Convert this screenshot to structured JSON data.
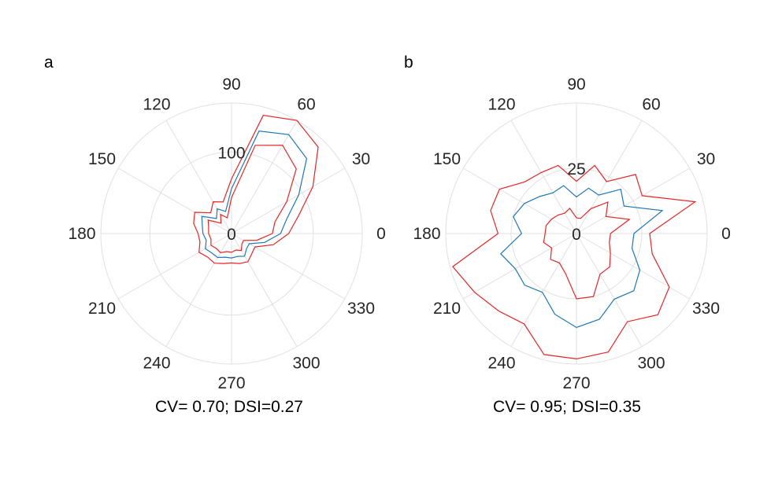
{
  "chart_data": [
    {
      "type": "polar-line",
      "panel_label": "a",
      "caption": "CV= 0.70; DSI=0.27",
      "theta_ticks": [
        0,
        30,
        60,
        90,
        120,
        150,
        180,
        210,
        240,
        270,
        300,
        330
      ],
      "theta_unit": "degrees",
      "r_ticks": [
        0,
        100
      ],
      "r_max": 160,
      "grid": true,
      "series": [
        {
          "role": "upper",
          "color": "#e32626",
          "points": [
            [
              0,
              70
            ],
            [
              15,
              85
            ],
            [
              30,
              115
            ],
            [
              45,
              150
            ],
            [
              60,
              160
            ],
            [
              75,
              150
            ],
            [
              90,
              67
            ],
            [
              105,
              40
            ],
            [
              120,
              45
            ],
            [
              135,
              36
            ],
            [
              150,
              52
            ],
            [
              165,
              48
            ],
            [
              180,
              41
            ],
            [
              195,
              40
            ],
            [
              210,
              46
            ],
            [
              225,
              41
            ],
            [
              240,
              42
            ],
            [
              255,
              38
            ],
            [
              270,
              36
            ],
            [
              285,
              38
            ],
            [
              300,
              40
            ],
            [
              315,
              35
            ],
            [
              330,
              33
            ],
            [
              345,
              53
            ]
          ]
        },
        {
          "role": "mean",
          "color": "#1f77b4",
          "points": [
            [
              0,
              60
            ],
            [
              15,
              70
            ],
            [
              30,
              95
            ],
            [
              45,
              130
            ],
            [
              60,
              140
            ],
            [
              75,
              130
            ],
            [
              90,
              55
            ],
            [
              105,
              28
            ],
            [
              120,
              35
            ],
            [
              135,
              26
            ],
            [
              150,
              42
            ],
            [
              165,
              37
            ],
            [
              180,
              35
            ],
            [
              195,
              32
            ],
            [
              210,
              37
            ],
            [
              225,
              34
            ],
            [
              240,
              34
            ],
            [
              255,
              30
            ],
            [
              270,
              30
            ],
            [
              285,
              29
            ],
            [
              300,
              32
            ],
            [
              315,
              26
            ],
            [
              330,
              25
            ],
            [
              345,
              42
            ]
          ]
        },
        {
          "role": "lower",
          "color": "#e32626",
          "points": [
            [
              0,
              50
            ],
            [
              15,
              55
            ],
            [
              30,
              78
            ],
            [
              45,
              112
            ],
            [
              60,
              125
            ],
            [
              75,
              112
            ],
            [
              90,
              44
            ],
            [
              105,
              20
            ],
            [
              120,
              27
            ],
            [
              135,
              18
            ],
            [
              150,
              33
            ],
            [
              165,
              29
            ],
            [
              180,
              28
            ],
            [
              195,
              26
            ],
            [
              210,
              29
            ],
            [
              225,
              26
            ],
            [
              240,
              27
            ],
            [
              255,
              23
            ],
            [
              270,
              23
            ],
            [
              285,
              21
            ],
            [
              300,
              24
            ],
            [
              315,
              18
            ],
            [
              330,
              17
            ],
            [
              345,
              32
            ]
          ]
        }
      ]
    },
    {
      "type": "polar-line",
      "panel_label": "b",
      "caption": "CV= 0.95; DSI=0.35",
      "theta_ticks": [
        0,
        30,
        60,
        90,
        120,
        150,
        180,
        210,
        240,
        270,
        300,
        330
      ],
      "theta_unit": "degrees",
      "r_ticks": [
        0,
        25
      ],
      "r_max": 50,
      "grid": true,
      "series": [
        {
          "role": "upper",
          "color": "#e32626",
          "points": [
            [
              0,
              28
            ],
            [
              15,
              47
            ],
            [
              30,
              29
            ],
            [
              45,
              32
            ],
            [
              60,
              23
            ],
            [
              75,
              27
            ],
            [
              90,
              20
            ],
            [
              105,
              27
            ],
            [
              120,
              27
            ],
            [
              135,
              28
            ],
            [
              150,
              34
            ],
            [
              165,
              34
            ],
            [
              180,
              30
            ],
            [
              195,
              49
            ],
            [
              210,
              45
            ],
            [
              225,
              42
            ],
            [
              240,
              40
            ],
            [
              255,
              48
            ],
            [
              270,
              48
            ],
            [
              285,
              47
            ],
            [
              300,
              39
            ],
            [
              315,
              44
            ],
            [
              330,
              41
            ],
            [
              345,
              30
            ]
          ]
        },
        {
          "role": "mean",
          "color": "#1f77b4",
          "points": [
            [
              0,
              22
            ],
            [
              15,
              34
            ],
            [
              30,
              21
            ],
            [
              45,
              24
            ],
            [
              60,
              17
            ],
            [
              75,
              18
            ],
            [
              90,
              14
            ],
            [
              105,
              19
            ],
            [
              120,
              18
            ],
            [
              135,
              20
            ],
            [
              150,
              23
            ],
            [
              165,
              25
            ],
            [
              180,
              21
            ],
            [
              195,
              30
            ],
            [
              210,
              27
            ],
            [
              225,
              28
            ],
            [
              240,
              26
            ],
            [
              255,
              32
            ],
            [
              270,
              36
            ],
            [
              285,
              34
            ],
            [
              300,
              29
            ],
            [
              315,
              31
            ],
            [
              330,
              28
            ],
            [
              345,
              22
            ]
          ]
        },
        {
          "role": "lower",
          "color": "#e32626",
          "points": [
            [
              0,
              13
            ],
            [
              15,
              21
            ],
            [
              30,
              13
            ],
            [
              45,
              17
            ],
            [
              60,
              11
            ],
            [
              75,
              6
            ],
            [
              90,
              6
            ],
            [
              105,
              10
            ],
            [
              120,
              9
            ],
            [
              135,
              10
            ],
            [
              150,
              11
            ],
            [
              165,
              12
            ],
            [
              180,
              12
            ],
            [
              195,
              13
            ],
            [
              210,
              11
            ],
            [
              225,
              14
            ],
            [
              240,
              13
            ],
            [
              255,
              16
            ],
            [
              270,
              25
            ],
            [
              285,
              25
            ],
            [
              300,
              18
            ],
            [
              315,
              18
            ],
            [
              330,
              15
            ],
            [
              345,
              13
            ]
          ]
        }
      ]
    }
  ]
}
